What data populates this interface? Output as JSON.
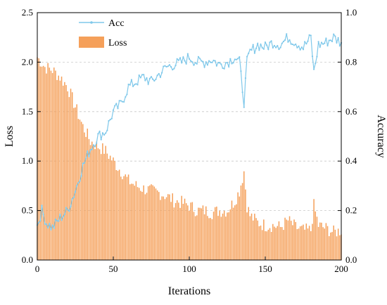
{
  "chart_data": {
    "type": "bar+line",
    "xlabel": "Iterations",
    "ylabel_left": "Loss",
    "ylabel_right": "Accuracy",
    "xlim": [
      0,
      200
    ],
    "ylim_left": [
      0,
      2.5
    ],
    "ylim_right": [
      0,
      1.0
    ],
    "xticks": [
      "0",
      "50",
      "100",
      "150",
      "200"
    ],
    "yticks_left": [
      "0.0",
      "0.5",
      "1.0",
      "1.5",
      "2.0",
      "2.5"
    ],
    "yticks_right": [
      "0.0",
      "0.2",
      "0.4",
      "0.6",
      "0.8",
      "1.0"
    ],
    "grid": "horizontal dashed",
    "legend_position": "top-left",
    "series": [
      {
        "name": "Loss",
        "type": "bar",
        "axis": "left",
        "color": "#F5A05A",
        "x": [
          0,
          5,
          10,
          15,
          20,
          25,
          30,
          35,
          40,
          45,
          50,
          55,
          60,
          65,
          70,
          75,
          80,
          85,
          90,
          95,
          100,
          105,
          110,
          115,
          120,
          125,
          130,
          133,
          136,
          138,
          140,
          145,
          150,
          155,
          160,
          165,
          170,
          175,
          180,
          182,
          185,
          190,
          195,
          200
        ],
        "values": [
          2.05,
          1.95,
          1.92,
          1.85,
          1.75,
          1.55,
          1.35,
          1.2,
          1.15,
          1.1,
          1.0,
          0.9,
          0.8,
          0.75,
          0.72,
          0.7,
          0.68,
          0.65,
          0.6,
          0.58,
          0.55,
          0.5,
          0.5,
          0.48,
          0.5,
          0.5,
          0.6,
          0.7,
          0.9,
          0.55,
          0.45,
          0.38,
          0.35,
          0.35,
          0.33,
          0.4,
          0.33,
          0.3,
          0.3,
          0.55,
          0.35,
          0.32,
          0.28,
          0.3
        ]
      },
      {
        "name": "Acc",
        "type": "line",
        "axis": "right",
        "color": "#7FC8EA",
        "x": [
          0,
          3,
          6,
          10,
          15,
          20,
          25,
          30,
          35,
          40,
          45,
          50,
          55,
          60,
          65,
          70,
          75,
          80,
          85,
          90,
          95,
          100,
          105,
          110,
          115,
          120,
          125,
          130,
          133,
          136,
          138,
          140,
          145,
          150,
          155,
          160,
          165,
          170,
          175,
          180,
          182,
          185,
          190,
          195,
          200
        ],
        "values": [
          0.14,
          0.2,
          0.15,
          0.13,
          0.17,
          0.2,
          0.28,
          0.38,
          0.45,
          0.5,
          0.52,
          0.6,
          0.63,
          0.7,
          0.72,
          0.74,
          0.72,
          0.75,
          0.78,
          0.79,
          0.8,
          0.82,
          0.8,
          0.8,
          0.81,
          0.79,
          0.8,
          0.82,
          0.8,
          0.64,
          0.8,
          0.84,
          0.87,
          0.86,
          0.88,
          0.87,
          0.9,
          0.88,
          0.86,
          0.9,
          0.76,
          0.87,
          0.88,
          0.9,
          0.88
        ]
      }
    ]
  }
}
